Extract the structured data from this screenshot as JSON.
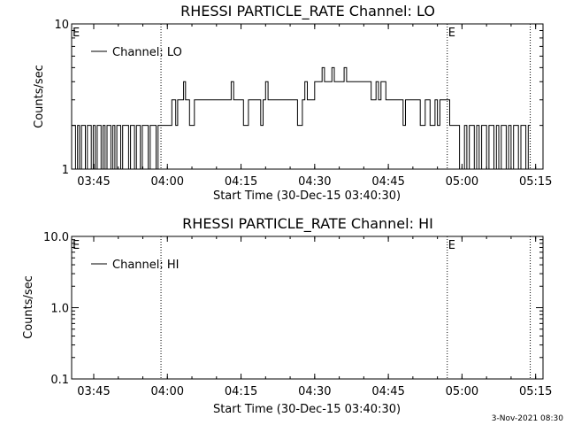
{
  "footer": {
    "timestamp": "3-Nov-2021 08:30"
  },
  "chart_data": [
    {
      "type": "line",
      "title": "RHESSI PARTICLE_RATE Channel: LO",
      "xlabel": "Start Time (30-Dec-15 03:40:30)",
      "ylabel": "Counts/sec",
      "y_scale": "log",
      "ylim": [
        1,
        10
      ],
      "ytick_labels": [
        "1",
        "10"
      ],
      "xlim_minutes": [
        0,
        96
      ],
      "xtick_labels": [
        "03:45",
        "04:00",
        "04:15",
        "04:30",
        "04:45",
        "05:00",
        "05:15"
      ],
      "xtick_minutes": [
        4.5,
        19.5,
        34.5,
        49.5,
        64.5,
        79.5,
        94.5
      ],
      "event_marker": "E",
      "event_lines_minutes": [
        18.2,
        76.5,
        93.4
      ],
      "event_labels_minutes": [
        0,
        76.5
      ],
      "legend": {
        "position": "top-left",
        "label": "Channel: LO"
      },
      "series": [
        {
          "name": "Channel: LO",
          "x": [
            0,
            0.4,
            0.8,
            1.2,
            1.6,
            2.0,
            2.4,
            2.8,
            3.2,
            3.6,
            4.0,
            4.4,
            4.8,
            5.2,
            5.6,
            6.0,
            6.4,
            6.8,
            7.2,
            7.6,
            8.0,
            8.4,
            8.8,
            9.2,
            9.6,
            10.0,
            10.4,
            10.8,
            11.2,
            11.6,
            12.0,
            12.4,
            12.8,
            13.2,
            13.6,
            14.0,
            14.4,
            14.8,
            15.2,
            15.6,
            16.0,
            16.4,
            16.8,
            17.2,
            17.6,
            18.0,
            18.4,
            18.8,
            19.2,
            19.6,
            20.0,
            20.4,
            20.8,
            21.2,
            21.6,
            22.0,
            22.4,
            22.8,
            23.2,
            23.6,
            24.0,
            25.0,
            26.0,
            27.0,
            28.0,
            29.0,
            30.0,
            31.0,
            32.0,
            32.5,
            33.0,
            33.5,
            34.0,
            35.0,
            36.0,
            37.0,
            38.0,
            38.5,
            39.0,
            39.5,
            40.0,
            41.0,
            42.0,
            43.0,
            44.0,
            45.0,
            46.0,
            47.0,
            47.5,
            48.0,
            49.0,
            49.5,
            50.0,
            51.0,
            51.5,
            52.0,
            53.0,
            53.5,
            54.0,
            55.0,
            55.5,
            56.0,
            57.0,
            58.0,
            59.0,
            60.0,
            61.0,
            62.0,
            62.5,
            63.0,
            64.0,
            65.0,
            66.0,
            67.0,
            67.5,
            68.0,
            69.0,
            70.0,
            71.0,
            72.0,
            72.5,
            73.0,
            74.0,
            74.5,
            75.0,
            76.0,
            76.5,
            77.0,
            78.0,
            78.5,
            79.0,
            80.0,
            80.5,
            81.0,
            81.5,
            82.0,
            82.5,
            83.0,
            83.5,
            84.0,
            84.5,
            85.0,
            85.5,
            86.0,
            86.5,
            87.0,
            87.5,
            88.0,
            88.5,
            89.0,
            89.5,
            90.0,
            90.5,
            91.0,
            91.5,
            92.0,
            92.5,
            93.0
          ],
          "values": [
            2,
            2,
            1,
            2,
            1,
            2,
            2,
            1,
            2,
            2,
            1,
            2,
            1,
            2,
            2,
            1,
            2,
            1,
            2,
            2,
            1,
            2,
            1,
            2,
            2,
            1,
            2,
            2,
            2,
            1,
            2,
            2,
            1,
            2,
            2,
            1,
            2,
            2,
            2,
            1,
            2,
            2,
            2,
            1,
            2,
            2,
            2,
            2,
            2,
            2,
            2,
            3,
            3,
            2,
            3,
            3,
            3,
            4,
            3,
            3,
            2,
            3,
            3,
            3,
            3,
            3,
            3,
            3,
            3,
            4,
            3,
            3,
            3,
            2,
            3,
            3,
            3,
            2,
            3,
            4,
            3,
            3,
            3,
            3,
            3,
            3,
            2,
            3,
            4,
            3,
            3,
            4,
            4,
            5,
            4,
            4,
            5,
            4,
            4,
            4,
            5,
            4,
            4,
            4,
            4,
            4,
            3,
            4,
            3,
            4,
            3,
            3,
            3,
            3,
            2,
            3,
            3,
            3,
            2,
            3,
            3,
            2,
            3,
            2,
            3,
            3,
            3,
            2,
            2,
            2,
            1,
            2,
            1,
            2,
            2,
            1,
            2,
            1,
            2,
            2,
            1,
            2,
            2,
            1,
            2,
            1,
            2,
            2,
            1,
            2,
            1,
            2,
            2,
            1,
            2,
            2,
            1,
            2
          ]
        }
      ]
    },
    {
      "type": "line",
      "title": "RHESSI PARTICLE_RATE Channel: HI",
      "xlabel": "Start Time (30-Dec-15 03:40:30)",
      "ylabel": "Counts/sec",
      "y_scale": "log",
      "ylim": [
        0.1,
        10
      ],
      "ytick_labels": [
        "0.1",
        "1.0",
        "10.0"
      ],
      "xlim_minutes": [
        0,
        96
      ],
      "xtick_labels": [
        "03:45",
        "04:00",
        "04:15",
        "04:30",
        "04:45",
        "05:00",
        "05:15"
      ],
      "xtick_minutes": [
        4.5,
        19.5,
        34.5,
        49.5,
        64.5,
        79.5,
        94.5
      ],
      "event_marker": "E",
      "event_lines_minutes": [
        18.2,
        76.5,
        93.4
      ],
      "event_labels_minutes": [
        0,
        76.5
      ],
      "legend": {
        "position": "top-left",
        "label": "Channel: HI"
      },
      "series": [
        {
          "name": "Channel: HI",
          "x": [],
          "values": []
        }
      ]
    }
  ]
}
